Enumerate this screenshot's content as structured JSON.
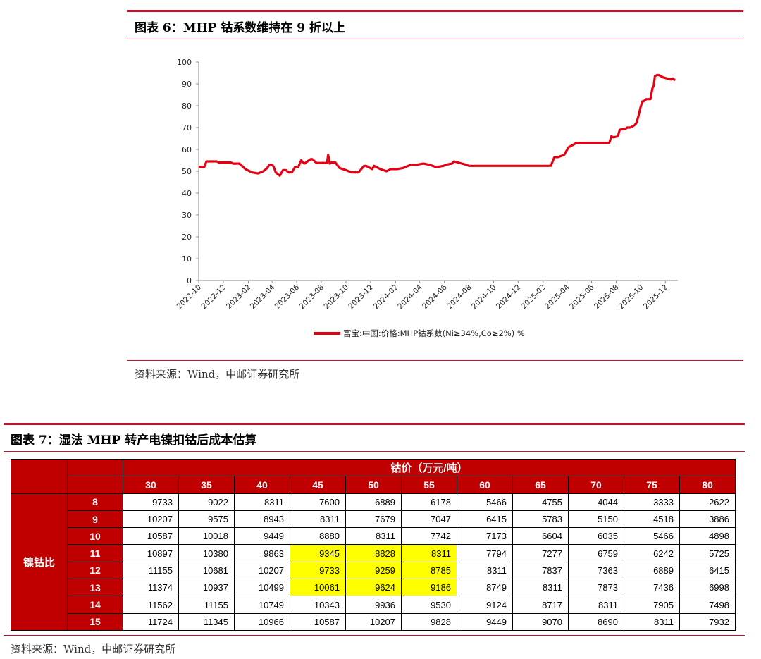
{
  "figure6": {
    "title": "图表 6：MHP 钴系数维持在 9 折以上",
    "source": "资料来源：Wind，中邮证券研究所"
  },
  "figure7": {
    "title": "图表 7：湿法 MHP 转产电镍扣钴后成本估算",
    "source": "资料来源：Wind，中邮证券研究所"
  },
  "colors": {
    "accent": "#c8102e",
    "header_red": "#c00000",
    "highlight": "#ffff00"
  },
  "chart_data": {
    "type": "line",
    "title": "",
    "xlabel": "",
    "ylabel": "",
    "ylim": [
      0,
      100
    ],
    "yticks": [
      0,
      10,
      20,
      30,
      40,
      50,
      60,
      70,
      80,
      90,
      100
    ],
    "xlim": [
      "2022-10",
      "2026-01"
    ],
    "xticks": [
      "2022-10",
      "2022-12",
      "2023-02",
      "2023-04",
      "2023-06",
      "2023-08",
      "2023-10",
      "2023-12",
      "2024-02",
      "2024-04",
      "2024-06",
      "2024-08",
      "2024-10",
      "2024-12",
      "2025-02",
      "2025-04",
      "2025-06",
      "2025-08",
      "2025-10",
      "2025-12"
    ],
    "legend_position": "bottom",
    "grid": false,
    "series": [
      {
        "name": "富宝:中国:价格:MHP钴系数(Ni≥34%,Co≥2%) %",
        "color": "#e60012",
        "x": [
          "2022-10-01",
          "2022-10-15",
          "2022-10-20",
          "2022-11-15",
          "2022-11-20",
          "2022-12-20",
          "2022-12-25",
          "2023-01-10",
          "2023-01-25",
          "2023-02-10",
          "2023-02-25",
          "2023-03-10",
          "2023-03-20",
          "2023-03-25",
          "2023-04-01",
          "2023-04-05",
          "2023-04-10",
          "2023-04-20",
          "2023-04-28",
          "2023-05-05",
          "2023-05-12",
          "2023-05-20",
          "2023-05-28",
          "2023-06-05",
          "2023-06-12",
          "2023-06-20",
          "2023-07-05",
          "2023-07-10",
          "2023-07-20",
          "2023-08-15",
          "2023-08-18",
          "2023-08-22",
          "2023-08-26",
          "2023-09-05",
          "2023-09-15",
          "2023-10-01",
          "2023-10-15",
          "2023-11-01",
          "2023-11-15",
          "2023-11-20",
          "2023-12-05",
          "2023-12-10",
          "2023-12-25",
          "2024-01-10",
          "2024-01-20",
          "2024-02-05",
          "2024-02-20",
          "2024-03-10",
          "2024-03-25",
          "2024-04-10",
          "2024-04-25",
          "2024-05-10",
          "2024-05-15",
          "2024-05-30",
          "2024-06-05",
          "2024-06-20",
          "2024-06-25",
          "2024-07-25",
          "2024-08-01",
          "2025-02-20",
          "2025-03-01",
          "2025-03-10",
          "2025-03-25",
          "2025-04-05",
          "2025-04-15",
          "2025-04-25",
          "2025-05-05",
          "2025-05-15",
          "2025-07-15",
          "2025-07-20",
          "2025-07-25",
          "2025-08-05",
          "2025-08-10",
          "2025-08-25",
          "2025-08-28",
          "2025-09-05",
          "2025-09-15",
          "2025-09-20",
          "2025-09-25",
          "2025-09-30",
          "2025-10-05",
          "2025-10-08",
          "2025-10-15",
          "2025-10-25",
          "2025-10-30",
          "2025-11-02",
          "2025-11-05",
          "2025-11-10",
          "2025-11-15",
          "2025-11-25",
          "2025-12-05",
          "2025-12-15",
          "2025-12-20",
          "2025-12-25"
        ],
        "values": [
          52,
          52,
          54.5,
          54.5,
          54,
          54,
          53.5,
          53.5,
          51,
          49.5,
          49,
          50,
          51.5,
          53,
          53,
          52,
          49.5,
          48,
          50.5,
          50.5,
          49.5,
          49.5,
          52,
          52,
          55,
          53.5,
          55.5,
          55.5,
          53.8,
          53.8,
          57.5,
          53.5,
          54,
          54,
          51.5,
          50.5,
          49.5,
          49.5,
          52.5,
          52.5,
          51,
          52.5,
          51,
          50,
          51,
          51,
          51.5,
          53,
          53,
          53.5,
          53,
          52,
          52,
          52.5,
          53,
          53.5,
          54.5,
          53,
          52.5,
          52.5,
          56.5,
          56.5,
          57.5,
          61,
          62,
          63,
          63,
          63,
          63,
          66,
          65.5,
          66,
          69,
          69.5,
          70,
          70,
          71,
          72,
          75,
          79,
          82,
          82,
          83,
          83,
          88,
          89,
          93.5,
          94,
          94,
          93,
          92.5,
          92,
          92.5,
          91.5
        ]
      }
    ]
  },
  "table": {
    "col_group_label": "钴价（万元/吨）",
    "row_group_label": "镍钴比",
    "col_headers": [
      "30",
      "35",
      "40",
      "45",
      "50",
      "55",
      "60",
      "65",
      "70",
      "75",
      "80"
    ],
    "rows": [
      {
        "label": "8",
        "values": [
          "9733",
          "9022",
          "8311",
          "7600",
          "6889",
          "6178",
          "5466",
          "4755",
          "4044",
          "3333",
          "2622"
        ]
      },
      {
        "label": "9",
        "values": [
          "10207",
          "9575",
          "8943",
          "8311",
          "7679",
          "7047",
          "6415",
          "5783",
          "5150",
          "4518",
          "3886"
        ]
      },
      {
        "label": "10",
        "values": [
          "10587",
          "10018",
          "9449",
          "8880",
          "8311",
          "7742",
          "7173",
          "6604",
          "6035",
          "5466",
          "4898"
        ]
      },
      {
        "label": "11",
        "values": [
          "10897",
          "10380",
          "9863",
          "9345",
          "8828",
          "8311",
          "7794",
          "7277",
          "6759",
          "6242",
          "5725"
        ]
      },
      {
        "label": "12",
        "values": [
          "11155",
          "10681",
          "10207",
          "9733",
          "9259",
          "8785",
          "8311",
          "7837",
          "7363",
          "6889",
          "6415"
        ]
      },
      {
        "label": "13",
        "values": [
          "11374",
          "10937",
          "10499",
          "10061",
          "9624",
          "9186",
          "8749",
          "8311",
          "7873",
          "7436",
          "6998"
        ]
      },
      {
        "label": "14",
        "values": [
          "11562",
          "11155",
          "10749",
          "10343",
          "9936",
          "9530",
          "9124",
          "8717",
          "8311",
          "7905",
          "7498"
        ]
      },
      {
        "label": "15",
        "values": [
          "11724",
          "11345",
          "10966",
          "10587",
          "10207",
          "9828",
          "9449",
          "9070",
          "8690",
          "8311",
          "7932"
        ]
      }
    ],
    "highlighted_rows": [
      3,
      4,
      5
    ],
    "highlighted_cols": [
      3,
      4,
      5
    ]
  }
}
